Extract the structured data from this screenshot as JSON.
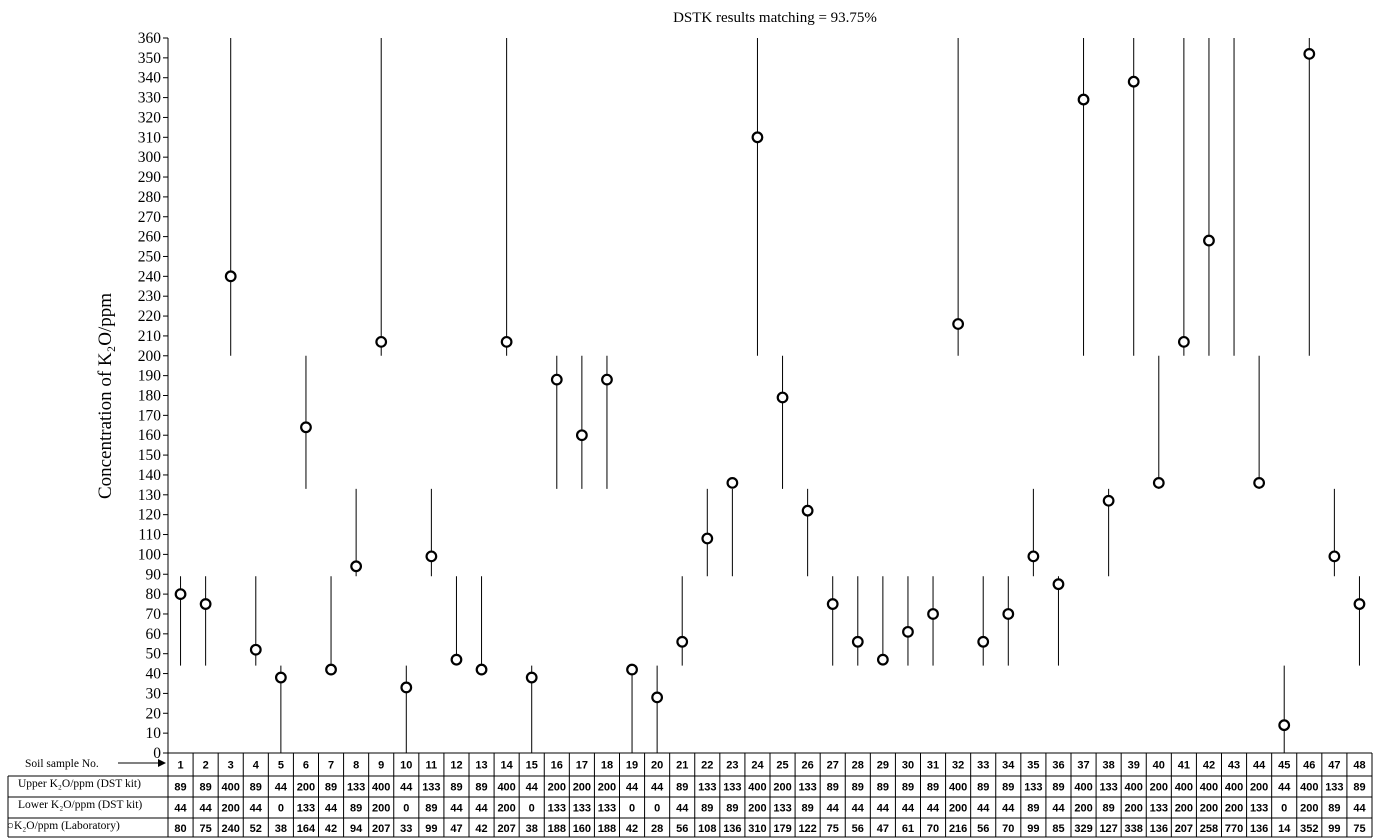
{
  "chart_data": {
    "type": "scatter",
    "title": "DSTK results matching = 93.75%",
    "ylabel": "Concentration of K₂O/ppm",
    "ylim": [
      0,
      360
    ],
    "y_ticks": [
      0,
      10,
      20,
      30,
      40,
      50,
      60,
      70,
      80,
      90,
      100,
      110,
      120,
      130,
      140,
      150,
      160,
      170,
      180,
      190,
      200,
      210,
      220,
      230,
      240,
      250,
      260,
      270,
      280,
      290,
      300,
      310,
      320,
      330,
      340,
      350,
      360
    ],
    "table_labels": {
      "sample": "Soil sample No.",
      "upper": "Upper K₂O/ppm (DST kit)",
      "lower": "Lower K₂O/ppm (DST kit)",
      "lab": "○K₂O/ppm (Laboratory)"
    },
    "samples": [
      1,
      2,
      3,
      4,
      5,
      6,
      7,
      8,
      9,
      10,
      11,
      12,
      13,
      14,
      15,
      16,
      17,
      18,
      19,
      20,
      21,
      22,
      23,
      24,
      25,
      26,
      27,
      28,
      29,
      30,
      31,
      32,
      33,
      34,
      35,
      36,
      37,
      38,
      39,
      40,
      41,
      42,
      43,
      44,
      45,
      46,
      47,
      48
    ],
    "upper": [
      89,
      89,
      400,
      89,
      44,
      200,
      89,
      133,
      400,
      44,
      133,
      89,
      89,
      400,
      44,
      200,
      200,
      200,
      44,
      44,
      89,
      133,
      133,
      400,
      200,
      133,
      89,
      89,
      89,
      89,
      89,
      400,
      89,
      89,
      133,
      89,
      400,
      133,
      400,
      200,
      400,
      400,
      400,
      200,
      44,
      400,
      133,
      89
    ],
    "lower": [
      44,
      44,
      200,
      44,
      0,
      133,
      44,
      89,
      200,
      0,
      89,
      44,
      44,
      200,
      0,
      133,
      133,
      133,
      0,
      0,
      44,
      89,
      89,
      200,
      133,
      89,
      44,
      44,
      44,
      44,
      44,
      200,
      44,
      44,
      89,
      44,
      200,
      89,
      200,
      133,
      200,
      200,
      200,
      133,
      0,
      200,
      89,
      44
    ],
    "lab": [
      80,
      75,
      240,
      52,
      38,
      164,
      42,
      94,
      207,
      33,
      99,
      47,
      42,
      207,
      38,
      188,
      160,
      188,
      42,
      28,
      56,
      108,
      136,
      310,
      179,
      122,
      75,
      56,
      47,
      61,
      70,
      216,
      56,
      70,
      99,
      85,
      329,
      127,
      338,
      136,
      207,
      258,
      770,
      136,
      14,
      352,
      99,
      75
    ]
  }
}
